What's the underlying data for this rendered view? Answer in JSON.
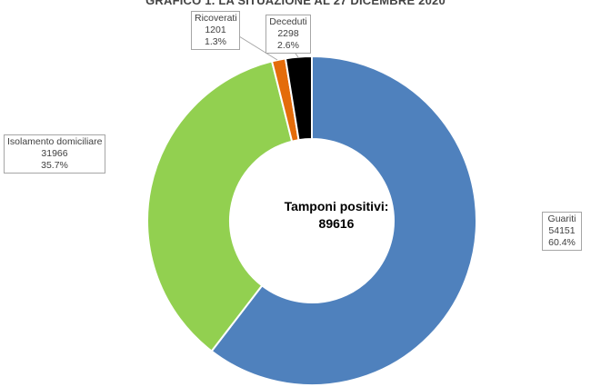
{
  "chart_data": {
    "type": "pie",
    "title": "GRAFICO 1. LA SITUAZIONE AL 27 DICEMBRE 2020",
    "center_label": "Tamponi positivi:",
    "center_value": "89616",
    "slices": [
      {
        "name": "Guariti",
        "value": 54151,
        "percent_label": "60.4%",
        "color": "#4f81bd"
      },
      {
        "name": "Isolamento domiciliare",
        "value": 31966,
        "percent_label": "35.7%",
        "color": "#92d050"
      },
      {
        "name": "Ricoverati",
        "value": 1201,
        "percent_label": "1.3%",
        "color": "#e46c0a"
      },
      {
        "name": "Deceduti",
        "value": 2298,
        "percent_label": "2.6%",
        "color": "#000000"
      }
    ]
  }
}
